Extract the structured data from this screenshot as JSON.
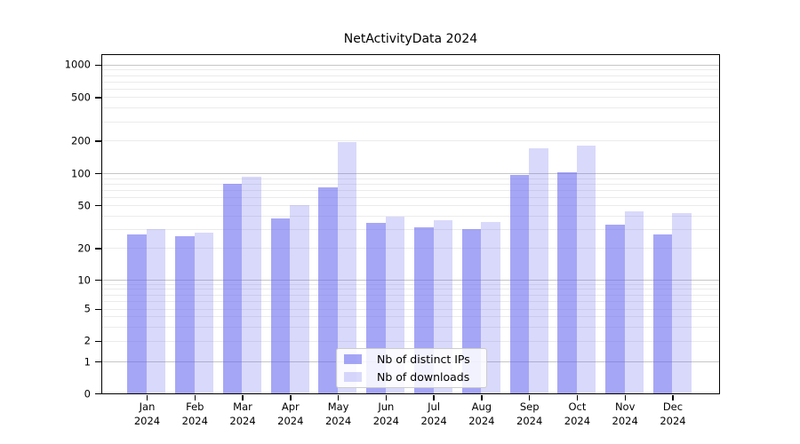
{
  "title": "NetActivityData 2024",
  "chart_data": {
    "type": "bar",
    "title": "NetActivityData 2024",
    "months": [
      "Jan",
      "Feb",
      "Mar",
      "Apr",
      "May",
      "Jun",
      "Jul",
      "Aug",
      "Sep",
      "Oct",
      "Nov",
      "Dec"
    ],
    "year": "2024",
    "series": [
      {
        "name": "Nb of distinct IPs",
        "values": [
          27,
          26,
          80,
          38,
          74,
          34,
          31,
          30,
          96,
          102,
          33,
          27
        ],
        "color": "rgba(102,102,240,0.58)"
      },
      {
        "name": "Nb of downloads",
        "values": [
          30,
          28,
          93,
          50,
          192,
          39,
          36,
          35,
          170,
          180,
          44,
          42
        ],
        "color": "rgba(102,102,240,0.25)"
      }
    ],
    "yscale": "symlog",
    "ytick_values": [
      0,
      1,
      2,
      5,
      10,
      20,
      50,
      100,
      200,
      500,
      1000
    ],
    "ytick_labels": [
      "0",
      "1",
      "2",
      "5",
      "10",
      "20",
      "50",
      "100",
      "200",
      "500",
      "1000"
    ],
    "ylim": [
      0,
      1000
    ],
    "grid": true,
    "legend_position": "lower center inside",
    "colors": {
      "ips": "rgba(102,102,240,0.58)",
      "downloads": "rgba(102,102,240,0.25)"
    }
  },
  "legend": {
    "items": [
      {
        "label": "Nb of distinct IPs"
      },
      {
        "label": "Nb of downloads"
      }
    ]
  }
}
